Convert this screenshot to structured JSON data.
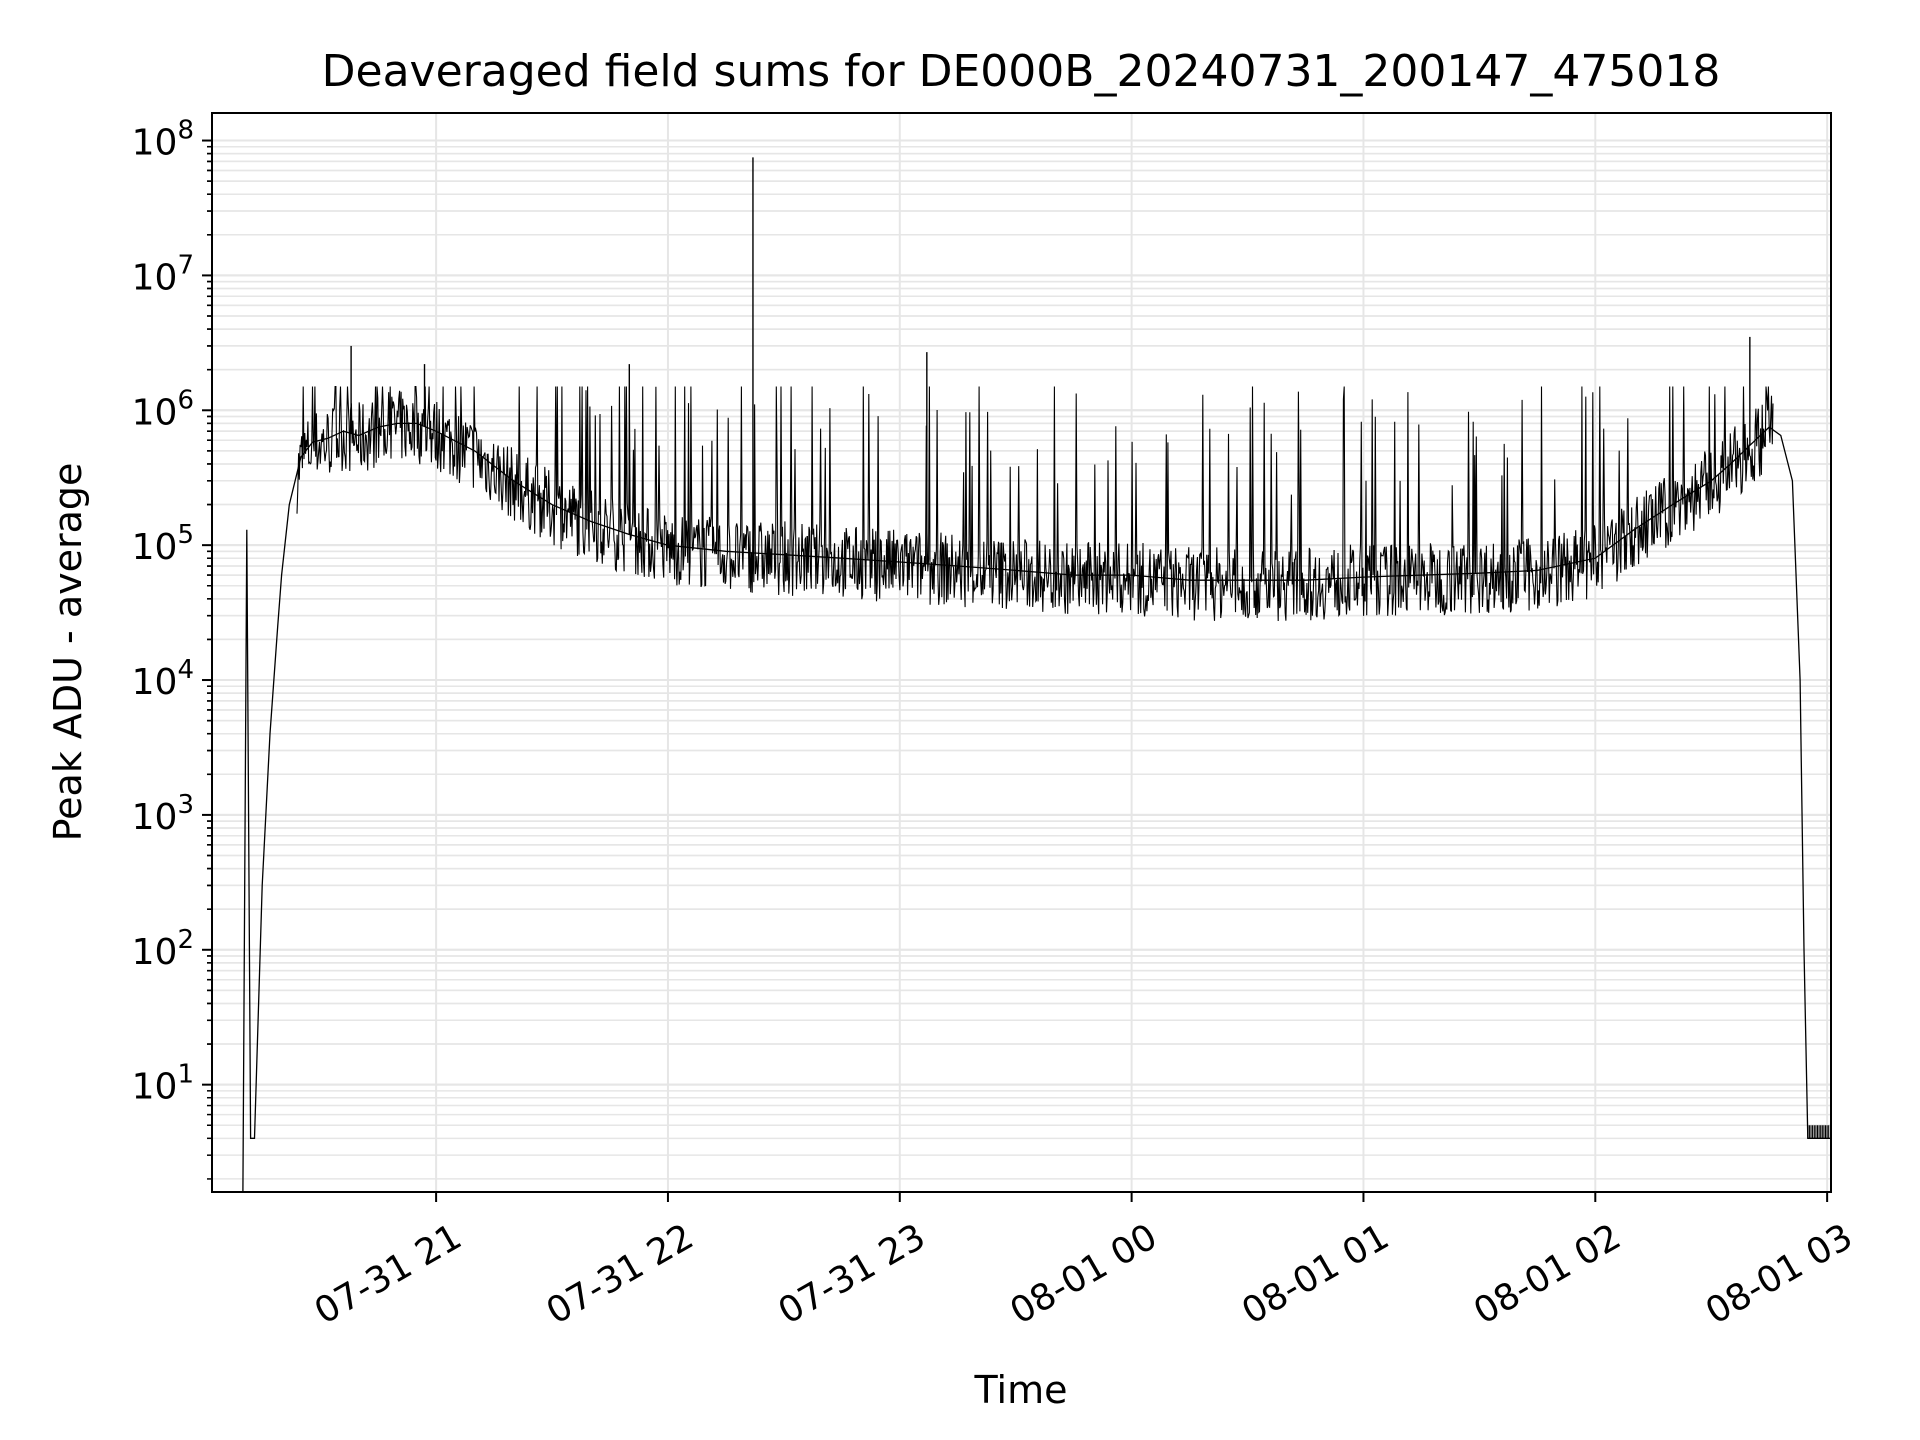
{
  "chart_data": {
    "type": "line",
    "title": "Deaveraged field sums for DE000B_20240731_200147_475018",
    "xlabel": "Time",
    "ylabel": "Peak ADU - average",
    "yscale": "log",
    "ylim": [
      1.6,
      160000000
    ],
    "xlim": [
      "2024-07-31 20:02",
      "2024-08-01 03:01"
    ],
    "grid": true,
    "x_ticks": [
      "07-31 21",
      "07-31 22",
      "07-31 23",
      "08-01 00",
      "08-01 01",
      "08-01 02",
      "08-01 03"
    ],
    "y_ticks": [
      {
        "base": "10",
        "exp": "1"
      },
      {
        "base": "10",
        "exp": "2"
      },
      {
        "base": "10",
        "exp": "3"
      },
      {
        "base": "10",
        "exp": "4"
      },
      {
        "base": "10",
        "exp": "5"
      },
      {
        "base": "10",
        "exp": "6"
      },
      {
        "base": "10",
        "exp": "7"
      },
      {
        "base": "10",
        "exp": "8"
      }
    ],
    "line_color": "#000000",
    "grid_color": "#e6e6e6",
    "series": [
      {
        "x": [
          "2024-07-31 20:10",
          "2024-07-31 20:11",
          "2024-07-31 20:12",
          "2024-07-31 20:13",
          "2024-07-31 20:15",
          "2024-07-31 20:17",
          "2024-07-31 20:19",
          "2024-07-31 20:20",
          "2024-07-31 20:22",
          "2024-07-31 20:25",
          "2024-07-31 20:28",
          "2024-07-31 20:32",
          "2024-07-31 20:36",
          "2024-07-31 20:40",
          "2024-07-31 20:45",
          "2024-07-31 20:50",
          "2024-07-31 20:55",
          "2024-07-31 21:00",
          "2024-07-31 21:10",
          "2024-07-31 21:20",
          "2024-07-31 21:30",
          "2024-07-31 21:40",
          "2024-07-31 21:50",
          "2024-07-31 22:00",
          "2024-07-31 22:15",
          "2024-07-31 22:30",
          "2024-07-31 22:45",
          "2024-07-31 23:00",
          "2024-07-31 23:15",
          "2024-07-31 23:30",
          "2024-07-31 23:45",
          "2024-08-01 00:00",
          "2024-08-01 00:15",
          "2024-08-01 00:30",
          "2024-08-01 00:45",
          "2024-08-01 01:00",
          "2024-08-01 01:15",
          "2024-08-01 01:30",
          "2024-08-01 01:45",
          "2024-08-01 02:00",
          "2024-08-01 02:10",
          "2024-08-01 02:20",
          "2024-08-01 02:30",
          "2024-08-01 02:35",
          "2024-08-01 02:40",
          "2024-08-01 02:45",
          "2024-08-01 02:48",
          "2024-08-01 02:51",
          "2024-08-01 02:53",
          "2024-08-01 02:54",
          "2024-08-01 02:55",
          "2024-08-01 03:01"
        ],
        "y": [
          1.6,
          130000,
          4,
          4,
          300,
          4000,
          25000,
          60000,
          200000,
          450000,
          580000,
          620000,
          700000,
          650000,
          750000,
          800000,
          800000,
          700000,
          500000,
          300000,
          200000,
          150000,
          120000,
          100000,
          90000,
          85000,
          80000,
          75000,
          70000,
          65000,
          60000,
          60000,
          55000,
          55000,
          55000,
          58000,
          60000,
          62000,
          65000,
          80000,
          130000,
          200000,
          300000,
          400000,
          550000,
          750000,
          650000,
          300000,
          10000,
          100,
          4,
          4
        ]
      }
    ],
    "spikes": [
      {
        "x": "2024-07-31 20:38",
        "y": 3000000
      },
      {
        "x": "2024-07-31 20:57",
        "y": 2200000
      },
      {
        "x": "2024-07-31 21:50",
        "y": 2200000
      },
      {
        "x": "2024-07-31 22:22",
        "y": 75000000
      },
      {
        "x": "2024-07-31 23:07",
        "y": 2700000
      },
      {
        "x": "2024-08-01 02:40",
        "y": 3500000
      }
    ]
  }
}
